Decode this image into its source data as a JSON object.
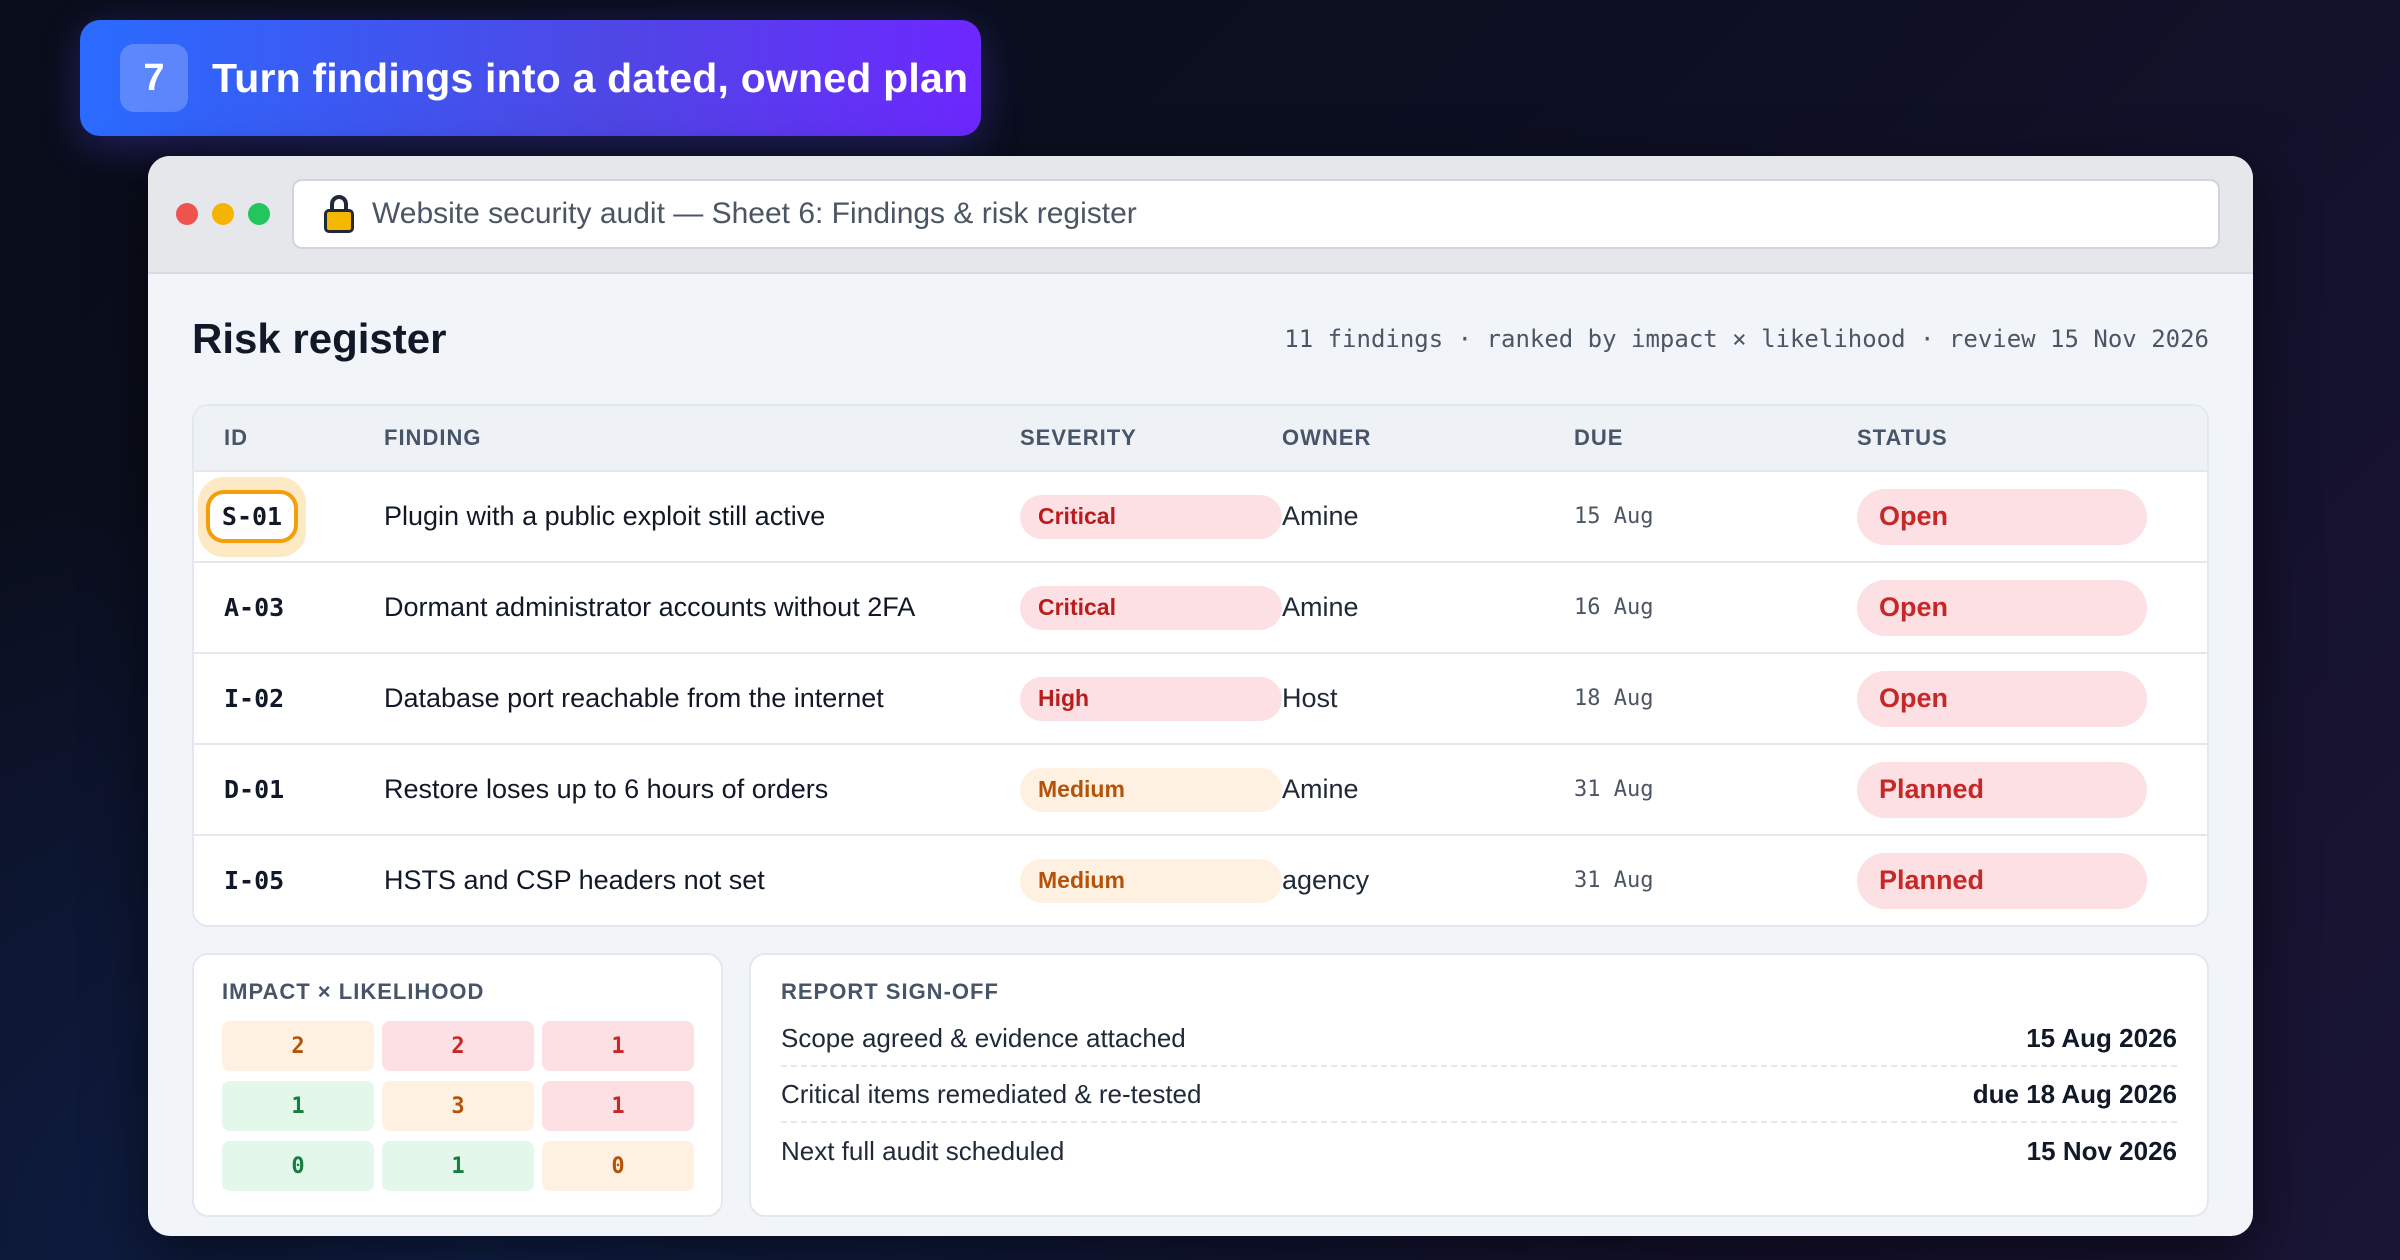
{
  "banner": {
    "step": "7",
    "title": "Turn findings into a dated, owned plan"
  },
  "window": {
    "url_title": "Website security audit — Sheet 6: Findings & risk register"
  },
  "page": {
    "title": "Risk register",
    "meta": "11 findings · ranked by impact × likelihood · review 15 Nov 2026"
  },
  "table": {
    "headers": {
      "id": "ID",
      "finding": "FINDING",
      "severity": "SEVERITY",
      "owner": "OWNER",
      "due": "DUE",
      "status": "STATUS"
    },
    "rows": [
      {
        "id": "S-01",
        "finding": "Plugin with a public exploit still active",
        "severity": "Critical",
        "owner": "Amine",
        "due": "15 Aug",
        "status": "Open"
      },
      {
        "id": "A-03",
        "finding": "Dormant administrator accounts without 2FA",
        "severity": "Critical",
        "owner": "Amine",
        "due": "16 Aug",
        "status": "Open"
      },
      {
        "id": "I-02",
        "finding": "Database port reachable from the internet",
        "severity": "High",
        "owner": "Host",
        "due": "18 Aug",
        "status": "Open"
      },
      {
        "id": "D-01",
        "finding": "Restore loses up to 6 hours of orders",
        "severity": "Medium",
        "owner": "Amine",
        "due": "31 Aug",
        "status": "Planned"
      },
      {
        "id": "I-05",
        "finding": "HSTS and CSP headers not set",
        "severity": "Medium",
        "owner": "agency",
        "due": "31 Aug",
        "status": "Planned"
      }
    ]
  },
  "matrix": {
    "title": "IMPACT × LIKELIHOOD",
    "cells": [
      [
        "2",
        "2",
        "1"
      ],
      [
        "1",
        "3",
        "1"
      ],
      [
        "0",
        "1",
        "0"
      ]
    ]
  },
  "signoff": {
    "title": "REPORT SIGN-OFF",
    "items": [
      {
        "label": "Scope agreed & evidence attached",
        "value": "15 Aug 2026"
      },
      {
        "label": "Critical items remediated & re-tested",
        "value": "due 18 Aug 2026"
      },
      {
        "label": "Next full audit scheduled",
        "value": "15 Nov 2026"
      }
    ]
  }
}
